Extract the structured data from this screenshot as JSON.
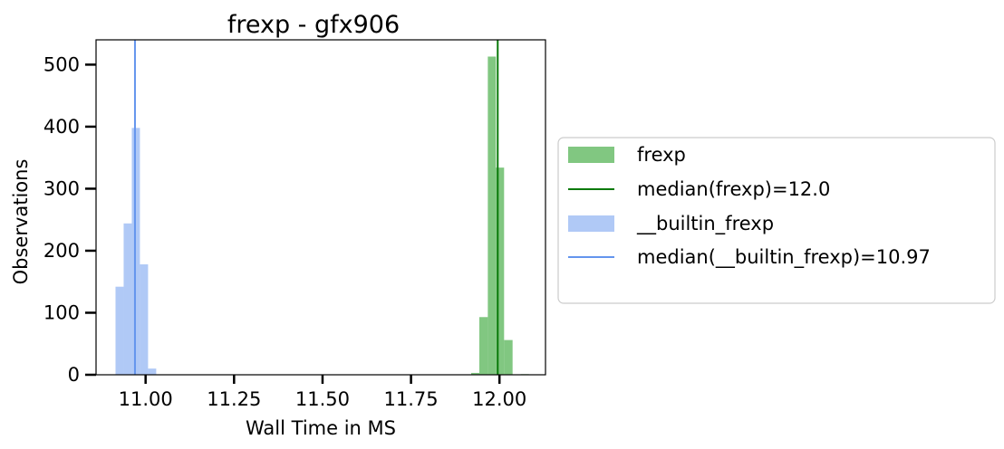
{
  "chart_data": {
    "type": "histogram",
    "title": "frexp - gfx906",
    "xlabel": "Wall Time in MS",
    "ylabel": "Observations",
    "xlim": [
      10.86,
      12.13
    ],
    "ylim": [
      0,
      540
    ],
    "xticks": [
      11.0,
      11.25,
      11.5,
      11.75,
      12.0
    ],
    "xtick_labels": [
      "11.00",
      "11.25",
      "11.50",
      "11.75",
      "12.00"
    ],
    "yticks": [
      0,
      100,
      200,
      300,
      400,
      500
    ],
    "ytick_labels": [
      "0",
      "100",
      "200",
      "300",
      "400",
      "500"
    ],
    "grid": false,
    "legend_position": "center-right outside plot",
    "series": [
      {
        "name": "frexp",
        "kind": "hist",
        "color": "#4caf4c",
        "opacity": 0.7,
        "bins": [
          {
            "x0": 11.92,
            "x1": 11.943,
            "count": 3
          },
          {
            "x0": 11.943,
            "x1": 11.967,
            "count": 93
          },
          {
            "x0": 11.967,
            "x1": 11.99,
            "count": 513
          },
          {
            "x0": 11.99,
            "x1": 12.013,
            "count": 334
          },
          {
            "x0": 12.013,
            "x1": 12.037,
            "count": 56
          },
          {
            "x0": 12.037,
            "x1": 12.06,
            "count": 0
          },
          {
            "x0": 12.06,
            "x1": 12.083,
            "count": 1
          }
        ]
      },
      {
        "name": "median(frexp)=12.0",
        "kind": "vline",
        "color": "#0a7a0a",
        "x": 11.995
      },
      {
        "name": "__builtin_frexp",
        "kind": "hist",
        "color": "#8fb2f2",
        "opacity": 0.7,
        "bins": [
          {
            "x0": 10.915,
            "x1": 10.938,
            "count": 142
          },
          {
            "x0": 10.938,
            "x1": 10.961,
            "count": 244
          },
          {
            "x0": 10.961,
            "x1": 10.984,
            "count": 398
          },
          {
            "x0": 10.984,
            "x1": 11.007,
            "count": 178
          },
          {
            "x0": 11.007,
            "x1": 11.03,
            "count": 10
          }
        ]
      },
      {
        "name": "median(__builtin_frexp)=10.97",
        "kind": "vline",
        "color": "#6495ed",
        "x": 10.97
      }
    ]
  }
}
